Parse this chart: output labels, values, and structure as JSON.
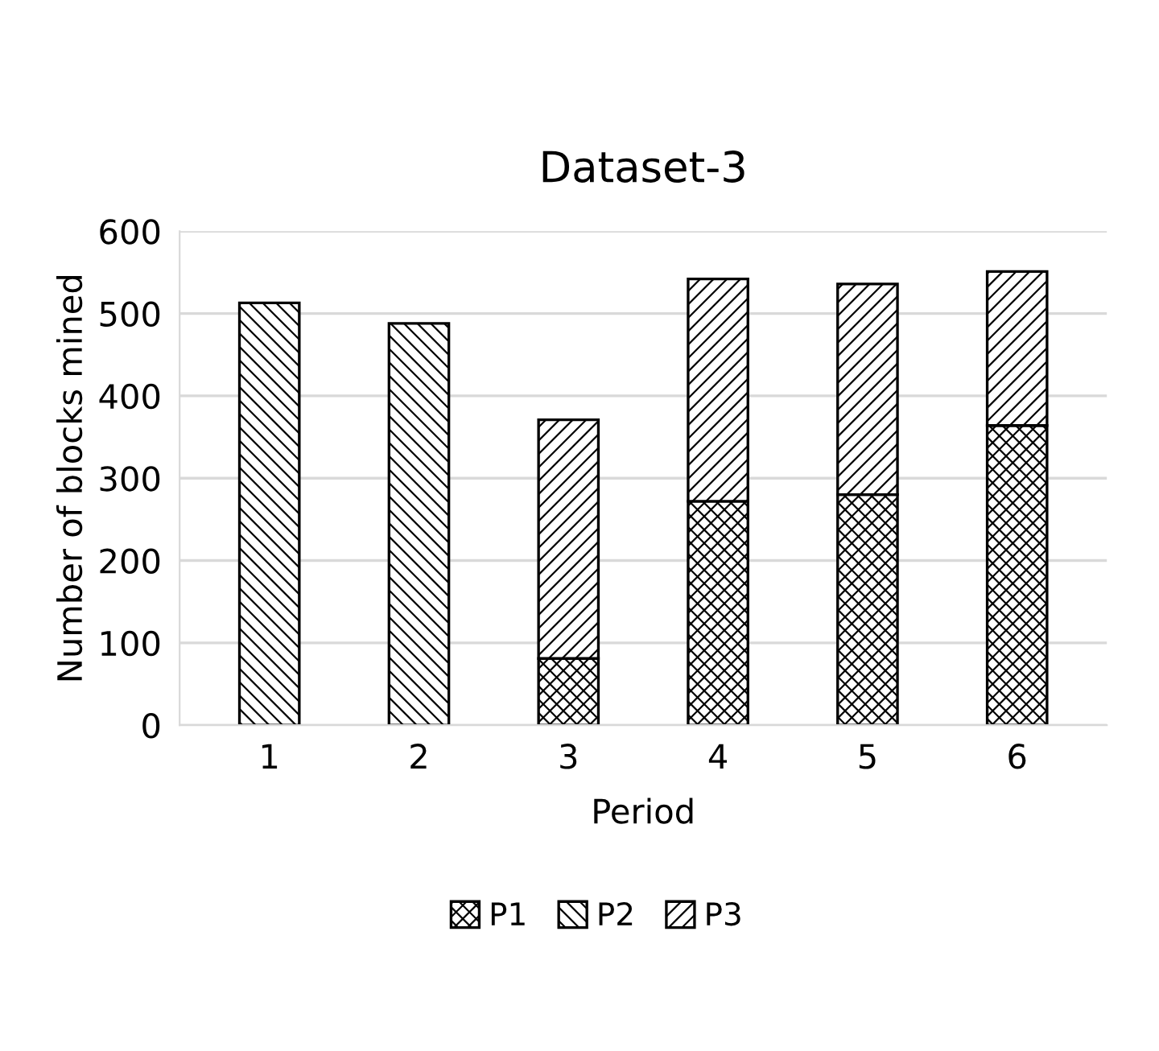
{
  "chart_data": {
    "type": "bar",
    "title": "Dataset-3",
    "xlabel": "Period",
    "ylabel": "Number of blocks mined",
    "categories": [
      "1",
      "2",
      "3",
      "4",
      "5",
      "6"
    ],
    "stacked": true,
    "series": [
      {
        "name": "P1",
        "color": "#000000",
        "values": [
          null,
          null,
          81,
          272,
          280,
          364
        ]
      },
      {
        "name": "P2",
        "color": "#000000",
        "values": [
          513,
          488,
          null,
          null,
          null,
          null
        ]
      },
      {
        "name": "P3",
        "color": "#000000",
        "values": [
          null,
          null,
          290,
          270,
          256,
          187
        ]
      }
    ],
    "ylim": [
      0,
      600
    ],
    "yticks": [
      0,
      100,
      200,
      300,
      400,
      500,
      600
    ],
    "grid": "y",
    "legend": "bottom"
  }
}
